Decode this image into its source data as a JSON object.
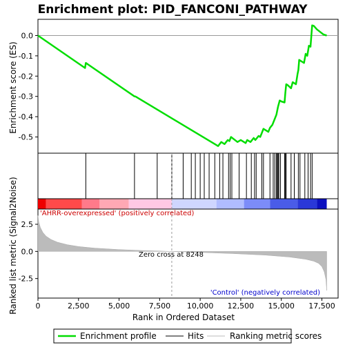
{
  "chart_data": {
    "type": "line",
    "title": "Enrichment plot: PID_FANCONI_PATHWAY",
    "xlabel": "Rank in Ordered Dataset",
    "es_panel": {
      "ylabel": "Enrichment score (ES)",
      "ylim": [
        -0.58,
        0.08
      ],
      "yticks": [
        0.0,
        -0.1,
        -0.2,
        -0.3,
        -0.4,
        -0.5
      ],
      "ytick_labels": [
        "0.0",
        "-0.1",
        "-0.2",
        "-0.3",
        "-0.4",
        "-0.5"
      ],
      "series": [
        {
          "name": "Enrichment profile",
          "color": "#00dd00",
          "x": [
            0,
            2900,
            2950,
            5950,
            6000,
            11000,
            11100,
            11300,
            11500,
            11700,
            11800,
            11900,
            12300,
            12500,
            12800,
            12900,
            13100,
            13300,
            13400,
            13600,
            13700,
            13800,
            13900,
            14200,
            14300,
            14450,
            14600,
            14700,
            14750,
            14800,
            14900,
            15000,
            15200,
            15250,
            15300,
            15400,
            15600,
            15700,
            15900,
            16000,
            16050,
            16100,
            16200,
            16400,
            16500,
            16600,
            16700,
            16800,
            16900,
            17000,
            17200,
            17600,
            17800
          ],
          "y": [
            0.0,
            -0.16,
            -0.135,
            -0.3,
            -0.3,
            -0.54,
            -0.545,
            -0.525,
            -0.535,
            -0.515,
            -0.52,
            -0.5,
            -0.525,
            -0.515,
            -0.53,
            -0.515,
            -0.525,
            -0.505,
            -0.515,
            -0.495,
            -0.5,
            -0.48,
            -0.46,
            -0.475,
            -0.455,
            -0.44,
            -0.41,
            -0.39,
            -0.37,
            -0.35,
            -0.32,
            -0.325,
            -0.33,
            -0.28,
            -0.24,
            -0.245,
            -0.26,
            -0.23,
            -0.24,
            -0.19,
            -0.17,
            -0.12,
            -0.125,
            -0.135,
            -0.09,
            -0.1,
            -0.05,
            -0.055,
            0.05,
            0.048,
            0.03,
            0.005,
            0.0
          ]
        }
      ]
    },
    "hits": [
      2950,
      5950,
      7350,
      8250,
      8950,
      9450,
      9700,
      10000,
      10250,
      10550,
      10900,
      11200,
      11400,
      11750,
      11850,
      11950,
      12400,
      12850,
      13150,
      13350,
      13450,
      13800,
      13900,
      14300,
      14500,
      14600,
      14700,
      14750,
      14800,
      14850,
      14950,
      15200,
      15250,
      15300,
      15600,
      15800,
      16050,
      16150,
      16450,
      16650,
      16800,
      16900
    ],
    "metric_panel": {
      "ylabel": "Ranked list metric (Signal2Noise)",
      "ylim": [
        -4.3,
        3.9
      ],
      "yticks": [
        2.5,
        0.0,
        -2.5
      ],
      "ytick_labels": [
        "2.5",
        "0.0",
        "-2.5"
      ],
      "x": [
        0,
        50,
        150,
        300,
        500,
        800,
        1200,
        1800,
        2500,
        3500,
        5000,
        6500,
        8248,
        10000,
        12000,
        14000,
        15500,
        16500,
        17000,
        17300,
        17500,
        17650,
        17750,
        17800
      ],
      "y": [
        3.3,
        2.7,
        2.2,
        1.75,
        1.4,
        1.1,
        0.85,
        0.62,
        0.45,
        0.3,
        0.17,
        0.08,
        0.0,
        -0.09,
        -0.2,
        -0.34,
        -0.52,
        -0.72,
        -0.9,
        -1.1,
        -1.4,
        -1.9,
        -2.6,
        -3.6
      ],
      "zero_cross_label": "Zero cross at 8248",
      "zero_cross": 8248,
      "annotation_positive": "'AHRR-overexpressed' (positively correlated)",
      "annotation_negative": "'Control' (negatively correlated)"
    },
    "xlim": [
      0,
      18500
    ],
    "xticks": [
      0,
      2500,
      5000,
      7500,
      10000,
      12500,
      15000,
      17500
    ],
    "xtick_labels": [
      "0",
      "2,500",
      "5,000",
      "7,500",
      "10,000",
      "12,500",
      "15,000",
      "17,500"
    ],
    "colorbar_segments": [
      {
        "from": 0,
        "to": 500,
        "color": "#ee0000"
      },
      {
        "from": 500,
        "to": 2700,
        "color": "#ff4a4a"
      },
      {
        "from": 2700,
        "to": 3800,
        "color": "#ff7a8a"
      },
      {
        "from": 3800,
        "to": 5600,
        "color": "#ffa8b4"
      },
      {
        "from": 5600,
        "to": 8248,
        "color": "#ffc8e4"
      },
      {
        "from": 8248,
        "to": 11000,
        "color": "#cfd6ff"
      },
      {
        "from": 11000,
        "to": 12700,
        "color": "#b0bcff"
      },
      {
        "from": 12700,
        "to": 14300,
        "color": "#7c8cf8"
      },
      {
        "from": 14300,
        "to": 16000,
        "color": "#4a5ce8"
      },
      {
        "from": 16000,
        "to": 17200,
        "color": "#2a38d8"
      },
      {
        "from": 17200,
        "to": 17800,
        "color": "#0c10c0"
      }
    ],
    "legend": {
      "placement": "bottom",
      "items": [
        {
          "label": "Enrichment profile",
          "color": "#00dd00"
        },
        {
          "label": "Hits",
          "color": "#000000"
        },
        {
          "label": "Ranking metric scores",
          "color": "#bbbbbb"
        }
      ]
    }
  }
}
